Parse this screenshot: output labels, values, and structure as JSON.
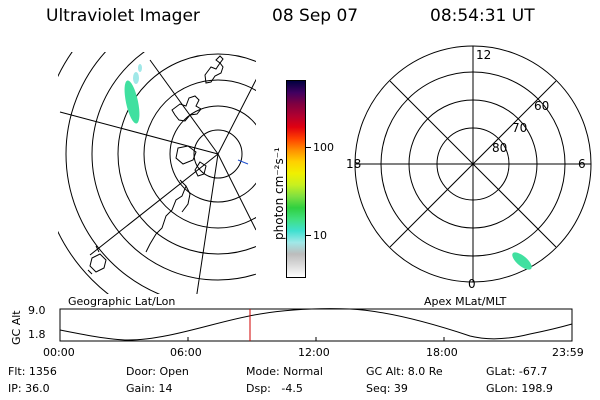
{
  "header": {
    "instrument": "Ultraviolet Imager",
    "date": "08 Sep 07",
    "time": "08:54:31 UT"
  },
  "colorbar": {
    "unit_label": "photon cm⁻²s⁻¹",
    "ticks": [
      "100",
      "10"
    ],
    "colors": [
      "#ffffff",
      "#dcdcdc",
      "#bcbcbc",
      "#a0e8e8",
      "#40e0d0",
      "#40e080",
      "#30d040",
      "#80e040",
      "#c8f020",
      "#f0f000",
      "#ffd000",
      "#ff9000",
      "#ff4000",
      "#e00010",
      "#b00030",
      "#800040",
      "#400060",
      "#000040"
    ]
  },
  "geo_panel": {
    "label": "Geographic Lat/Lon"
  },
  "apex_panel": {
    "label": "Apex MLat/MLT",
    "mlt_labels": {
      "top": "12",
      "left": "18",
      "right": "6",
      "bottom": "0"
    },
    "lat_labels": [
      "60",
      "70",
      "80"
    ]
  },
  "altitude_plot": {
    "ylabel": "GC Alt",
    "y_ticks": [
      "9.0",
      "1.8"
    ],
    "x_ticks": [
      "00:00",
      "06:00",
      "12:00",
      "18:00",
      "23:59"
    ],
    "marker_color": "#d00000"
  },
  "footer": {
    "flt": "Flt: 1356",
    "ip": "IP: 36.0",
    "door": "Door: Open",
    "gain": "Gain: 14",
    "mode": "Mode: Normal",
    "dsp": "Dsp:   -4.5",
    "gc_alt": "GC Alt: 8.0 Re",
    "seq": "Seq: 39",
    "glat": "GLat: -67.7",
    "glon": "GLon: 198.9"
  }
}
